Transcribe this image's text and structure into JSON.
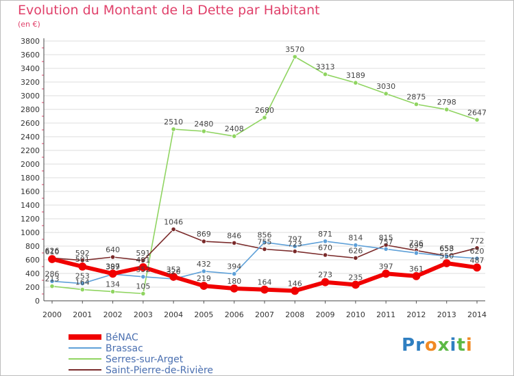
{
  "header": {
    "title": "Evolution du Montant de la Dette par Habitant",
    "subtitle": "(en €)"
  },
  "logo": {
    "text": "Proxiti",
    "colors": [
      "#2f7fc1",
      "#f08a24",
      "#5db946"
    ]
  },
  "chart_data": {
    "type": "line",
    "title": "Evolution du Montant de la Dette par Habitant",
    "subtitle": "(en €)",
    "xlabel": "",
    "ylabel": "",
    "ylim": [
      0,
      3800
    ],
    "y_ticks": [
      0,
      200,
      400,
      600,
      800,
      1000,
      1200,
      1400,
      1600,
      1800,
      2000,
      2200,
      2400,
      2600,
      2800,
      3000,
      3200,
      3400,
      3600,
      3800
    ],
    "x": [
      "2000",
      "2001",
      "2002",
      "2003",
      "2004",
      "2005",
      "2006",
      "2007",
      "2008",
      "2009",
      "2010",
      "2011",
      "2012",
      "2013",
      "2014"
    ],
    "grid": true,
    "legend": "bottom-left",
    "series": [
      {
        "name": "Serres-sur-Arget",
        "color": "#8fd460",
        "values": [
          213,
          164,
          134,
          105,
          2510,
          2480,
          2408,
          2680,
          3570,
          3313,
          3189,
          3030,
          2875,
          2798,
          2647
        ]
      },
      {
        "name": "Saint-Pierre-de-Rivière",
        "color": "#7a2a2a",
        "values": [
          626,
          592,
          640,
          591,
          1046,
          869,
          846,
          755,
          723,
          670,
          626,
          815,
          736,
          658,
          772
        ]
      },
      {
        "name": "Brassac",
        "color": "#5ea0d8",
        "values": [
          286,
          253,
          389,
          352,
          320,
          432,
          394,
          856,
          797,
          871,
          814,
          757,
          699,
          653,
          620
        ]
      },
      {
        "name": "BéNAC",
        "color": "#f00000",
        "values": [
          610,
          501,
          397,
          491,
          352,
          219,
          180,
          164,
          146,
          273,
          235,
          397,
          361,
          550,
          487
        ]
      }
    ]
  }
}
